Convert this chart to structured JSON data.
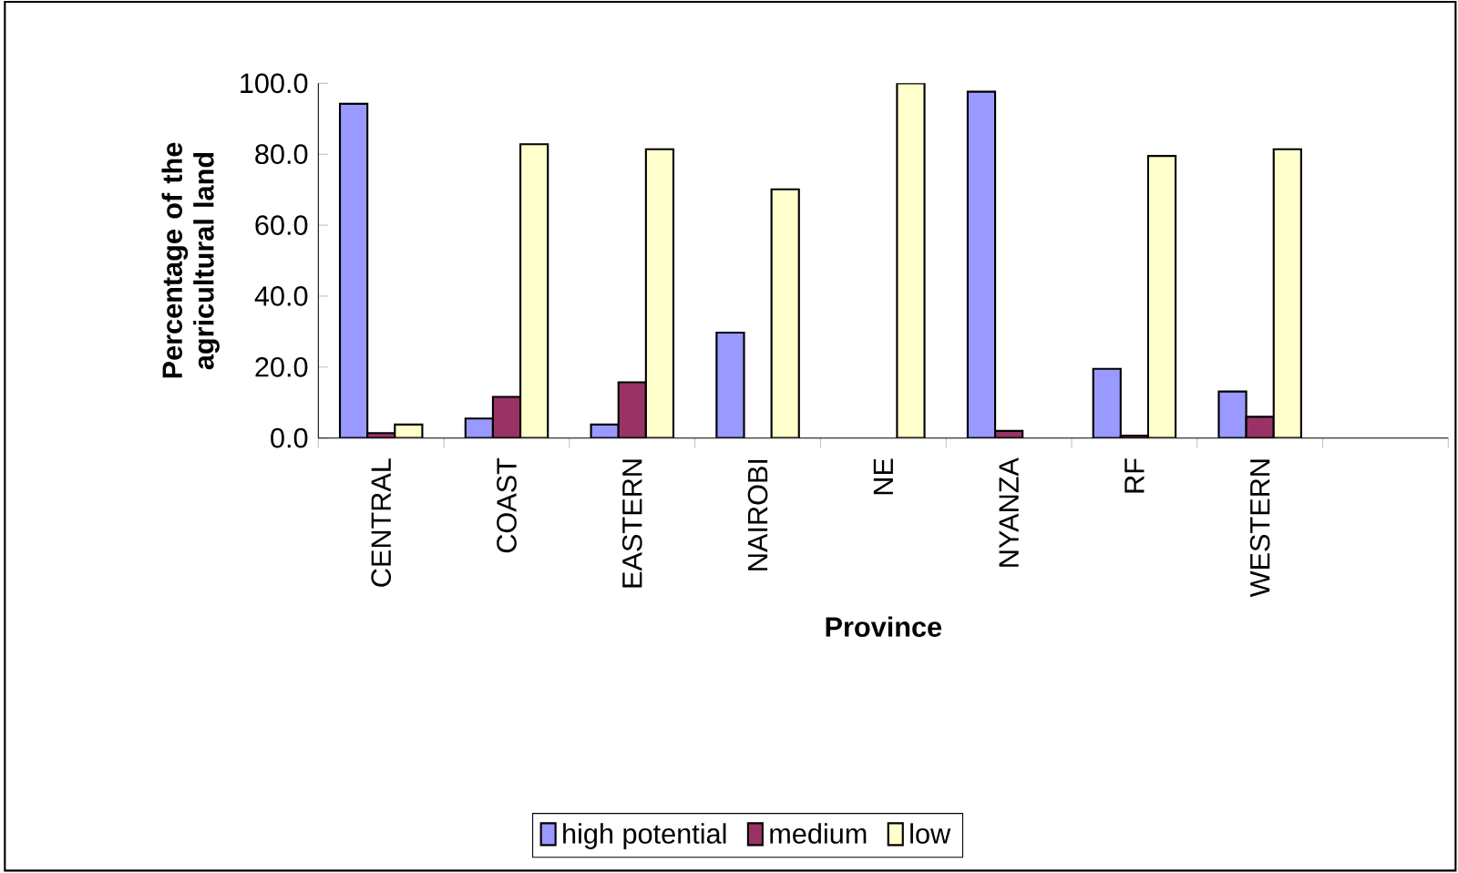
{
  "chart_data": {
    "type": "bar",
    "xlabel": "Province",
    "ylabel": "Percentage of the agricultural land",
    "categories": [
      "CENTRAL",
      "COAST",
      "EASTERN",
      "NAIROBI",
      "NE",
      "NYANZA",
      "RF",
      "WESTERN",
      null
    ],
    "series": [
      {
        "name": "high potential",
        "color": "#9999ff",
        "values": [
          94.2,
          5.5,
          3.8,
          29.7,
          null,
          97.6,
          19.5,
          13.1,
          null
        ]
      },
      {
        "name": "medium",
        "color": "#993366",
        "values": [
          1.4,
          11.6,
          15.7,
          null,
          null,
          2.0,
          0.7,
          6.0,
          null
        ]
      },
      {
        "name": "low",
        "color": "#ffffcc",
        "values": [
          3.8,
          82.8,
          81.4,
          70.1,
          100,
          null,
          79.5,
          81.4,
          null
        ]
      }
    ],
    "ylim": [
      0,
      100
    ],
    "yticks": [
      {
        "value": 0,
        "label": "0.0"
      },
      {
        "value": 20,
        "label": "20.0"
      },
      {
        "value": 40,
        "label": "40.0"
      },
      {
        "value": 60,
        "label": "60.0"
      },
      {
        "value": 80,
        "label": "80.0"
      },
      {
        "value": 100,
        "label": "100.0"
      }
    ],
    "legend": "bottom"
  }
}
